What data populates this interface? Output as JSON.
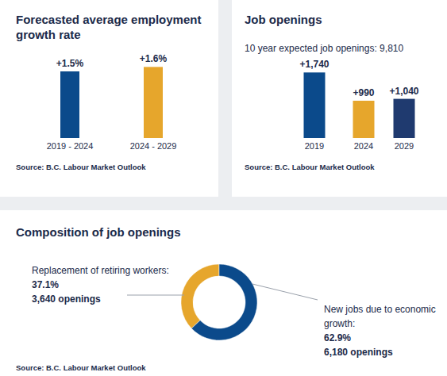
{
  "chart_data": [
    {
      "type": "bar",
      "title": "Forecasted average employment growth rate",
      "categories": [
        "2019 - 2024",
        "2024 - 2029"
      ],
      "values": [
        1.5,
        1.6
      ],
      "value_labels": [
        "+1.5%",
        "+1.6%"
      ],
      "colors": [
        "#0b4a8b",
        "#e6a62c"
      ],
      "ylim": [
        0,
        2
      ],
      "data_labels": true,
      "tick_labels": "x",
      "source": "Source: B.C. Labour Market Outlook"
    },
    {
      "type": "bar",
      "title": "Job openings",
      "subtitle": "10 year expected job openings: 9,810",
      "categories": [
        "2019",
        "2024",
        "2029"
      ],
      "values": [
        1740,
        990,
        1040
      ],
      "value_labels": [
        "+1,740",
        "+990",
        "+1,040"
      ],
      "colors": [
        "#0b4a8b",
        "#e6a62c",
        "#1f3a6f"
      ],
      "ylim": [
        0,
        2000
      ],
      "data_labels": true,
      "tick_labels": "x",
      "source": "Source: B.C. Labour Market Outlook"
    },
    {
      "type": "donut",
      "title": "Composition of job openings",
      "categories": [
        "Replacement of retiring workers:",
        "New jobs due to economic growth:"
      ],
      "values": [
        37.1,
        62.9
      ],
      "value_labels": [
        "37.1%",
        "62.9%"
      ],
      "openings_labels": [
        "3,640 openings",
        "6,180 openings"
      ],
      "colors": [
        "#e6a62c",
        "#0b4a8b"
      ],
      "data_labels": true,
      "source": "Source: B.C. Labour Market Outlook"
    }
  ]
}
